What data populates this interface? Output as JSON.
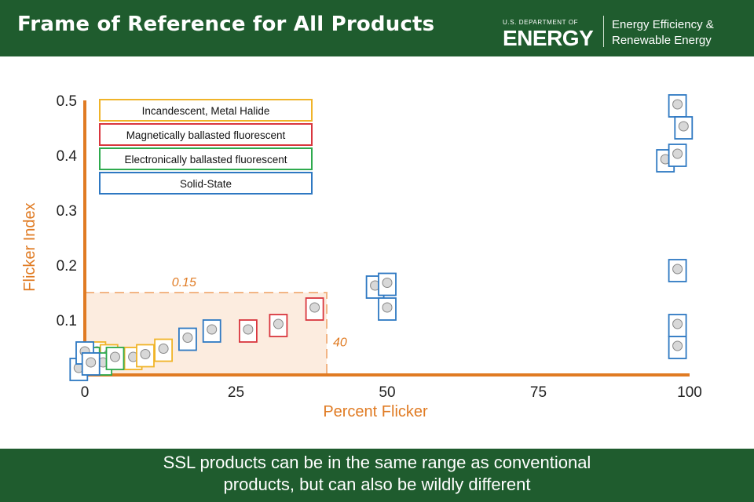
{
  "header": {
    "title": "Frame of Reference for All Products",
    "logo_dept": "U.S. DEPARTMENT OF",
    "logo_energy": "ENERGY",
    "eere_line1": "Energy Efficiency &",
    "eere_line2": "Renewable Energy"
  },
  "footer": {
    "caption_line1": "SSL products can be in the same range as conventional",
    "caption_line2": "products, but can also be wildly different"
  },
  "colors": {
    "brand_green": "#1f5c2e",
    "axis_orange": "#e07b23",
    "incandescent": "#f0b429",
    "magnetic": "#d9363e",
    "electronic": "#2eaa4e",
    "solid_state": "#2e78c2"
  },
  "chart_data": {
    "type": "scatter",
    "title": "",
    "xlabel": "Percent Flicker",
    "ylabel": "Flicker Index",
    "xlim": [
      0,
      100
    ],
    "ylim": [
      0,
      0.5
    ],
    "x_ticks": [
      0,
      25,
      50,
      75,
      100
    ],
    "y_ticks": [
      0.1,
      0.2,
      0.3,
      0.4,
      0.5
    ],
    "x_tick_labels": [
      "0",
      "25",
      "50",
      "75",
      "100"
    ],
    "y_tick_labels": [
      "0.1",
      "0.2",
      "0.3",
      "0.4",
      "0.5"
    ],
    "grid": false,
    "legend_position": "top-left",
    "legend": [
      {
        "name": "Incandescent, Metal Halide",
        "category": "incandescent"
      },
      {
        "name": "Magnetically ballasted fluorescent",
        "category": "magnetic"
      },
      {
        "name": "Electronically ballasted fluorescent",
        "category": "electronic"
      },
      {
        "name": "Solid-State",
        "category": "solid_state"
      }
    ],
    "reference_region": {
      "x_max": 40,
      "y_max": 0.15,
      "x_label": "40",
      "y_label": "0.15"
    },
    "series": [
      {
        "category": "incandescent",
        "points": [
          {
            "x": 2,
            "y": 0.04
          },
          {
            "x": 4,
            "y": 0.035
          },
          {
            "x": 6,
            "y": 0.03
          },
          {
            "x": 8,
            "y": 0.03
          },
          {
            "x": 10,
            "y": 0.035
          },
          {
            "x": 13,
            "y": 0.045
          }
        ]
      },
      {
        "category": "magnetic",
        "points": [
          {
            "x": 27,
            "y": 0.08
          },
          {
            "x": 32,
            "y": 0.09
          },
          {
            "x": 38,
            "y": 0.12
          }
        ]
      },
      {
        "category": "electronic",
        "points": [
          {
            "x": 1,
            "y": 0.03
          },
          {
            "x": 3,
            "y": 0.02
          },
          {
            "x": 5,
            "y": 0.03
          }
        ]
      },
      {
        "category": "solid_state",
        "points": [
          {
            "x": -1,
            "y": 0.01
          },
          {
            "x": 0,
            "y": 0.04
          },
          {
            "x": 1,
            "y": 0.02
          },
          {
            "x": 17,
            "y": 0.065
          },
          {
            "x": 21,
            "y": 0.08
          },
          {
            "x": 48,
            "y": 0.16
          },
          {
            "x": 50,
            "y": 0.165
          },
          {
            "x": 50,
            "y": 0.12
          },
          {
            "x": 96,
            "y": 0.39
          },
          {
            "x": 98,
            "y": 0.4
          },
          {
            "x": 98,
            "y": 0.49
          },
          {
            "x": 99,
            "y": 0.45
          },
          {
            "x": 98,
            "y": 0.19
          },
          {
            "x": 98,
            "y": 0.09
          },
          {
            "x": 98,
            "y": 0.05
          }
        ]
      }
    ]
  }
}
